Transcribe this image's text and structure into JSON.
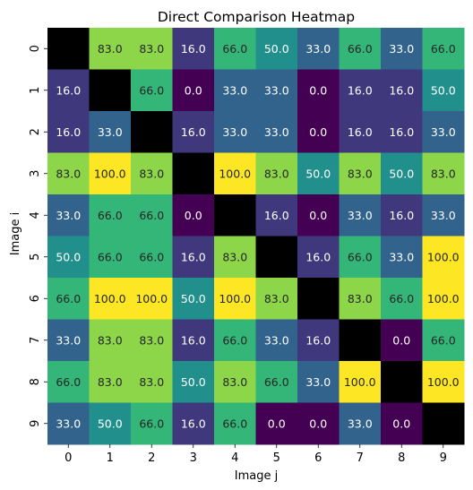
{
  "chart_data": {
    "type": "heatmap",
    "title": "Direct Comparison Heatmap",
    "xlabel": "Image j",
    "ylabel": "Image i",
    "x_ticks": [
      "0",
      "1",
      "2",
      "3",
      "4",
      "5",
      "6",
      "7",
      "8",
      "9"
    ],
    "y_ticks": [
      "0",
      "1",
      "2",
      "3",
      "4",
      "5",
      "6",
      "7",
      "8",
      "9"
    ],
    "colormap": "viridis",
    "value_range": [
      0,
      100
    ],
    "diagonal_color": "#000000",
    "cell_format": "one-decimal",
    "values": [
      [
        null,
        83.0,
        83.0,
        16.0,
        66.0,
        50.0,
        33.0,
        66.0,
        33.0,
        66.0
      ],
      [
        16.0,
        null,
        66.0,
        0.0,
        33.0,
        33.0,
        0.0,
        16.0,
        16.0,
        50.0
      ],
      [
        16.0,
        33.0,
        null,
        16.0,
        33.0,
        33.0,
        0.0,
        16.0,
        16.0,
        33.0
      ],
      [
        83.0,
        100.0,
        83.0,
        null,
        100.0,
        83.0,
        50.0,
        83.0,
        50.0,
        83.0
      ],
      [
        33.0,
        66.0,
        66.0,
        0.0,
        null,
        16.0,
        0.0,
        33.0,
        16.0,
        33.0
      ],
      [
        50.0,
        66.0,
        66.0,
        16.0,
        83.0,
        null,
        16.0,
        66.0,
        33.0,
        100.0
      ],
      [
        66.0,
        100.0,
        100.0,
        50.0,
        100.0,
        83.0,
        null,
        83.0,
        66.0,
        100.0
      ],
      [
        33.0,
        83.0,
        83.0,
        16.0,
        66.0,
        33.0,
        16.0,
        null,
        0.0,
        66.0
      ],
      [
        66.0,
        83.0,
        83.0,
        50.0,
        83.0,
        66.0,
        33.0,
        100.0,
        null,
        100.0
      ],
      [
        33.0,
        50.0,
        66.0,
        16.0,
        66.0,
        0.0,
        0.0,
        33.0,
        0.0,
        null
      ]
    ],
    "grid": false,
    "legend": "none"
  }
}
